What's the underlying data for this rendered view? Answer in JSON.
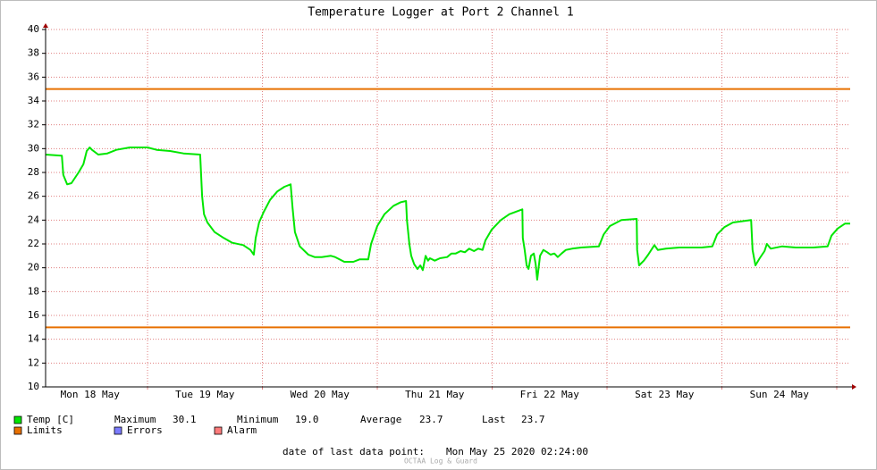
{
  "chart_data": {
    "type": "line",
    "title": "Temperature Logger at Port 2 Channel 1",
    "xlim": [
      -21.3,
      146.8
    ],
    "xticks": [
      {
        "value": -12,
        "label": "Mon 18 May"
      },
      {
        "value": 12,
        "label": "Tue 19 May"
      },
      {
        "value": 36,
        "label": "Wed 20 May"
      },
      {
        "value": 60,
        "label": "Thu 21 May"
      },
      {
        "value": 84,
        "label": "Fri 22 May"
      },
      {
        "value": 108,
        "label": "Sat 23 May"
      },
      {
        "value": 132,
        "label": "Sun 24 May"
      }
    ],
    "xgrid": [
      0,
      24,
      48,
      72,
      96,
      120,
      144
    ],
    "ylim": [
      10,
      40
    ],
    "yticks": [
      10,
      12,
      14,
      16,
      18,
      20,
      22,
      24,
      26,
      28,
      30,
      32,
      34,
      36,
      38,
      40
    ],
    "grid": true,
    "series": [
      {
        "name": "Temp [C]",
        "color": "#00e600",
        "x": [
          -21.3,
          -17.9,
          -17.6,
          -16.8,
          -15.9,
          -14.4,
          -13.4,
          -12.7,
          -12.1,
          -11.6,
          -10.3,
          -8.4,
          -6.5,
          -3.7,
          0,
          1.9,
          4.7,
          7.5,
          11.0,
          11.4,
          11.8,
          12.5,
          14.0,
          15.9,
          17.7,
          20.0,
          21.5,
          22.2,
          22.6,
          23.3,
          24.3,
          25.6,
          27.1,
          28.6,
          29.9,
          30.3,
          30.8,
          31.8,
          33.6,
          34.9,
          36.4,
          38.3,
          39.2,
          41.1,
          43.0,
          44.3,
          46.1,
          46.7,
          48.0,
          49.5,
          51.4,
          52.9,
          54.0,
          54.2,
          54.7,
          55.1,
          55.7,
          56.4,
          57.0,
          57.5,
          58.1,
          58.6,
          59.0,
          60.0,
          61.1,
          62.6,
          63.5,
          64.4,
          65.4,
          66.3,
          67.2,
          68.2,
          69.1,
          70.0,
          70.6,
          71.9,
          73.8,
          75.6,
          78.3,
          78.4,
          78.8,
          79.2,
          79.6,
          80.1,
          80.7,
          81.1,
          81.4,
          82.0,
          82.7,
          83.5,
          84.2,
          85.0,
          85.7,
          86.5,
          87.4,
          88.7,
          90.6,
          94.3,
          95.3,
          96.6,
          99.0,
          102.2,
          102.3,
          102.7,
          103.7,
          104.6,
          105.9,
          106.6,
          108.3,
          111.1,
          115.8,
          118.0,
          119.0,
          120.5,
          122.3,
          126.1,
          126.4,
          127.0,
          127.9,
          128.9,
          129.4,
          130.2,
          132.6,
          135.4,
          139.1,
          142.1,
          142.9,
          144.2,
          145.7,
          146.8
        ],
        "values": [
          29.5,
          29.4,
          27.8,
          27.0,
          27.1,
          28.0,
          28.7,
          29.8,
          30.1,
          29.9,
          29.5,
          29.6,
          29.9,
          30.1,
          30.1,
          29.9,
          29.8,
          29.6,
          29.5,
          26.0,
          24.5,
          23.8,
          23.0,
          22.5,
          22.1,
          21.9,
          21.5,
          21.1,
          22.5,
          23.8,
          24.7,
          25.7,
          26.4,
          26.8,
          27.0,
          25.0,
          23.0,
          21.8,
          21.1,
          20.9,
          20.9,
          21.0,
          20.9,
          20.5,
          20.5,
          20.7,
          20.7,
          22.0,
          23.5,
          24.5,
          25.2,
          25.5,
          25.6,
          24.0,
          22.0,
          21.0,
          20.3,
          19.9,
          20.2,
          19.8,
          21.0,
          20.6,
          20.8,
          20.6,
          20.8,
          20.9,
          21.2,
          21.2,
          21.4,
          21.3,
          21.6,
          21.4,
          21.6,
          21.5,
          22.3,
          23.2,
          24.0,
          24.5,
          24.9,
          22.5,
          21.5,
          20.2,
          19.9,
          21.0,
          21.2,
          20.3,
          19.0,
          21.0,
          21.5,
          21.3,
          21.1,
          21.2,
          20.9,
          21.2,
          21.5,
          21.6,
          21.7,
          21.8,
          22.8,
          23.5,
          24.0,
          24.1,
          21.5,
          20.2,
          20.6,
          21.1,
          21.9,
          21.5,
          21.6,
          21.7,
          21.7,
          21.8,
          22.8,
          23.4,
          23.8,
          24.0,
          21.5,
          20.2,
          20.8,
          21.4,
          22.0,
          21.6,
          21.8,
          21.7,
          21.7,
          21.8,
          22.7,
          23.3,
          23.7,
          23.7
        ]
      }
    ],
    "limits": {
      "name": "Limits",
      "color": "#e87000",
      "values": [
        35,
        15
      ]
    },
    "stats": {
      "labels": [
        "Maximum",
        "Minimum",
        "Average",
        "Last"
      ],
      "values": [
        30.1,
        19,
        23.7,
        23.7
      ],
      "value_labels": [
        "30.1",
        "19.0",
        "23.7",
        "23.7"
      ]
    },
    "legend_extra": [
      {
        "name": "Errors",
        "color": "#7b7bff"
      },
      {
        "name": "Alarm",
        "color": "#ff7b7b"
      }
    ],
    "footer_label": "date of last data point:",
    "footer_value": "Mon May 25 2020 02:24:00",
    "watermark": "OCTAA Log & Guard"
  }
}
